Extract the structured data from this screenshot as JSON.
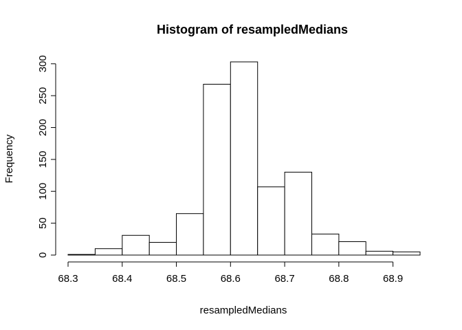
{
  "chart_data": {
    "type": "bar",
    "title": "Histogram of resampledMedians",
    "xlabel": "resampledMedians",
    "ylabel": "Frequency",
    "bins": [
      {
        "x0": 68.3,
        "x1": 68.35,
        "count": 1
      },
      {
        "x0": 68.35,
        "x1": 68.4,
        "count": 10
      },
      {
        "x0": 68.4,
        "x1": 68.45,
        "count": 31
      },
      {
        "x0": 68.45,
        "x1": 68.5,
        "count": 20
      },
      {
        "x0": 68.5,
        "x1": 68.55,
        "count": 65
      },
      {
        "x0": 68.55,
        "x1": 68.6,
        "count": 268
      },
      {
        "x0": 68.6,
        "x1": 68.65,
        "count": 303
      },
      {
        "x0": 68.65,
        "x1": 68.7,
        "count": 107
      },
      {
        "x0": 68.7,
        "x1": 68.75,
        "count": 130
      },
      {
        "x0": 68.75,
        "x1": 68.8,
        "count": 33
      },
      {
        "x0": 68.8,
        "x1": 68.85,
        "count": 21
      },
      {
        "x0": 68.85,
        "x1": 68.9,
        "count": 6
      },
      {
        "x0": 68.9,
        "x1": 68.95,
        "count": 5
      }
    ],
    "xticks": [
      "68.3",
      "68.4",
      "68.5",
      "68.6",
      "68.7",
      "68.8",
      "68.9"
    ],
    "yticks": [
      "0",
      "50",
      "100",
      "150",
      "200",
      "250",
      "300"
    ],
    "xlim": [
      68.3,
      68.95
    ],
    "ylim": [
      0,
      303
    ],
    "grid": false,
    "colors": {
      "bar_fill": "#ffffff",
      "bar_stroke": "#000000"
    }
  }
}
